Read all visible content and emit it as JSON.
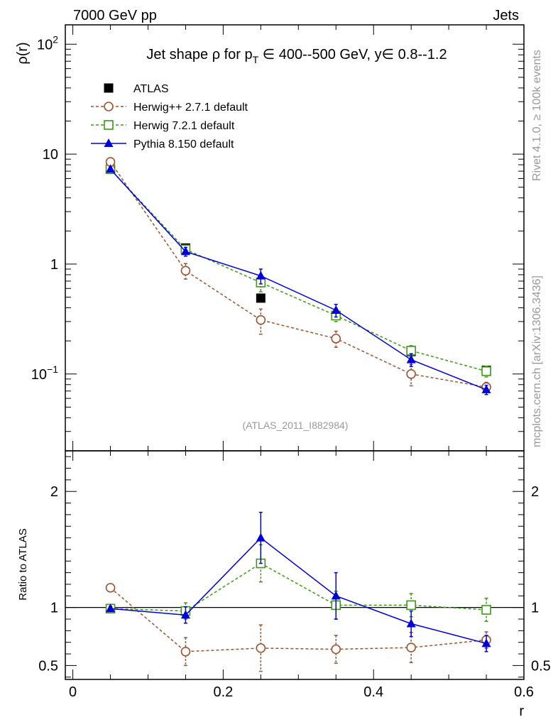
{
  "header": {
    "left": "7000 GeV pp",
    "right": "Jets"
  },
  "side_labels": {
    "rivet": "Rivet 4.1.0, ≥ 100k events",
    "mcplots": "mcplots.cern.ch [arXiv:1306.3436]"
  },
  "watermark": "(ATLAS_2011_I882984)",
  "chart_data": {
    "type": "line",
    "title": {
      "pre": "Jet shape ρ for p",
      "sub": "T",
      "post": " ∈ 400--500 GeV, y∈ 0.8--1.2"
    },
    "xlabel": "r",
    "ylabel_top": "ρ(r)",
    "ylabel_bottom": "Ratio to ATLAS",
    "xlim": [
      -0.01,
      0.6
    ],
    "ylim_top": [
      0.02,
      150
    ],
    "ylim_bottom": [
      0.38,
      2.35
    ],
    "x_ticks": [
      {
        "v": 0,
        "label": "0"
      },
      {
        "v": 0.2,
        "label": "0.2"
      },
      {
        "v": 0.4,
        "label": "0.4"
      },
      {
        "v": 0.6,
        "label": "0.6"
      }
    ],
    "y_ticks_top": [
      {
        "v": 0.1,
        "base": "10",
        "exp": "−1"
      },
      {
        "v": 1,
        "base": "1",
        "exp": ""
      },
      {
        "v": 10,
        "base": "10",
        "exp": ""
      },
      {
        "v": 100,
        "base": "10",
        "exp": "2"
      }
    ],
    "y_ticks_bottom": [
      {
        "v": 0.5,
        "label": "0.5"
      },
      {
        "v": 1,
        "label": "1"
      },
      {
        "v": 2,
        "label": "2"
      }
    ],
    "x": [
      0.05,
      0.15,
      0.25,
      0.35,
      0.45,
      0.55
    ],
    "series": [
      {
        "name": "ATLAS",
        "key": "atlas",
        "color": "#000000",
        "marker": "square-filled",
        "values": [
          7.3,
          1.4,
          0.49,
          0.34,
          0.16,
          0.108
        ],
        "err": [
          0.3,
          0.08,
          0.03,
          0.025,
          0.012,
          0.008
        ]
      },
      {
        "name": "Herwig++ 2.7.1 default",
        "key": "herwigpp",
        "color": "#a0522d",
        "marker": "circle-open",
        "line": "dashed",
        "values": [
          8.5,
          0.87,
          0.31,
          0.21,
          0.1,
          0.076
        ],
        "err": [
          0.4,
          0.14,
          0.08,
          0.035,
          0.022,
          0.008
        ],
        "ratio": [
          1.17,
          0.62,
          0.65,
          0.64,
          0.655,
          0.72
        ],
        "ratio_err": [
          0.02,
          0.12,
          0.2,
          0.12,
          0.13,
          0.07
        ]
      },
      {
        "name": "Herwig 7.2.1 default",
        "key": "herwig7",
        "color": "#3a9a12",
        "marker": "square-open",
        "line": "dashed",
        "values": [
          7.3,
          1.36,
          0.68,
          0.34,
          0.163,
          0.106
        ],
        "err": [
          0.3,
          0.1,
          0.12,
          0.04,
          0.018,
          0.012
        ],
        "ratio": [
          0.99,
          0.97,
          1.38,
          1.02,
          1.02,
          0.98
        ],
        "ratio_err": [
          0.02,
          0.07,
          0.16,
          0.12,
          0.1,
          0.1
        ]
      },
      {
        "name": "Pythia 8.150 default",
        "key": "pythia",
        "color": "#0000dd",
        "marker": "triangle-filled",
        "line": "solid",
        "values": [
          7.3,
          1.3,
          0.78,
          0.38,
          0.135,
          0.072
        ],
        "err": [
          0.3,
          0.12,
          0.12,
          0.05,
          0.018,
          0.007
        ],
        "ratio": [
          0.99,
          0.935,
          1.6,
          1.1,
          0.86,
          0.69
        ],
        "ratio_err": [
          0.02,
          0.07,
          0.22,
          0.2,
          0.11,
          0.07
        ]
      }
    ]
  }
}
